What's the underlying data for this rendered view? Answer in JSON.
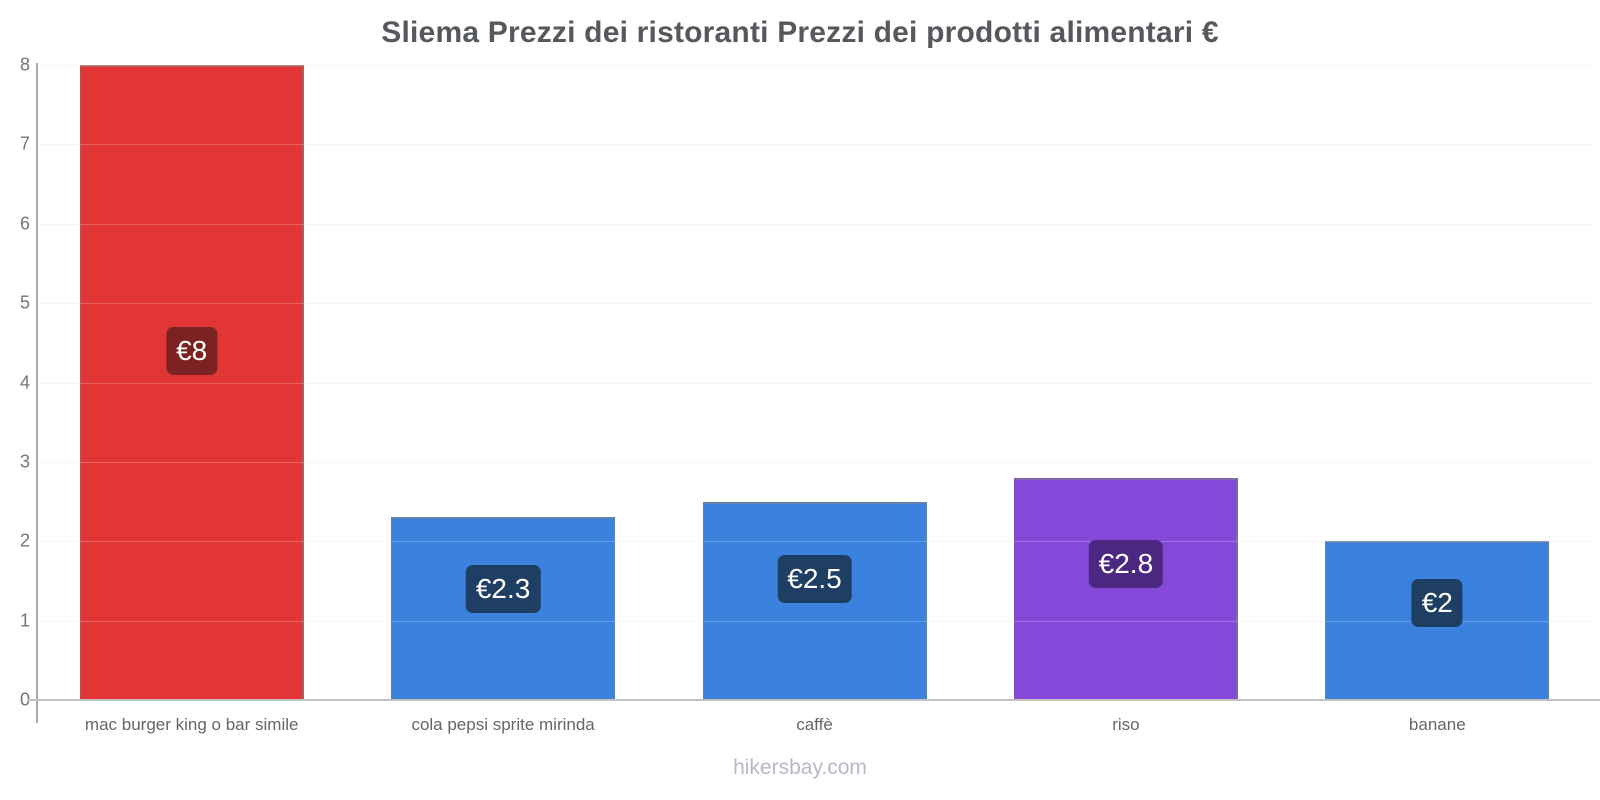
{
  "page": {
    "title": "Sliema Prezzi dei ristoranti Prezzi dei prodotti alimentari €",
    "watermark": "hikersbay.com"
  },
  "chart_data": {
    "type": "bar",
    "title": "Sliema Prezzi dei ristoranti Prezzi dei prodotti alimentari €",
    "categories": [
      "mac burger king o bar simile",
      "cola pepsi sprite mirinda",
      "caffè",
      "riso",
      "banane"
    ],
    "values": [
      8,
      2.3,
      2.5,
      2.8,
      2
    ],
    "value_labels": [
      "€8",
      "€2.3",
      "€2.5",
      "€2.8",
      "€2"
    ],
    "bar_colors": [
      "#e23636",
      "#3b82de",
      "#3b82de",
      "#8549da",
      "#3b82de"
    ],
    "badge_colors": [
      "#7b2323",
      "#1e3e64",
      "#1e3e64",
      "#4b2781",
      "#1e3e64"
    ],
    "xlabel": "",
    "ylabel": "",
    "ylim": [
      0,
      8
    ],
    "yticks": [
      0,
      1,
      2,
      3,
      4,
      5,
      6,
      7,
      8
    ],
    "grid": true,
    "legend": "none",
    "currency_symbol": "€"
  },
  "colors": {
    "background": "#ffffff",
    "title_text": "#55585c",
    "axis_text": "#757575",
    "category_text": "#666666",
    "axis_line": "#a9a9a9",
    "baseline": "#c2c2c2",
    "watermark_text": "#b6b8c5"
  }
}
